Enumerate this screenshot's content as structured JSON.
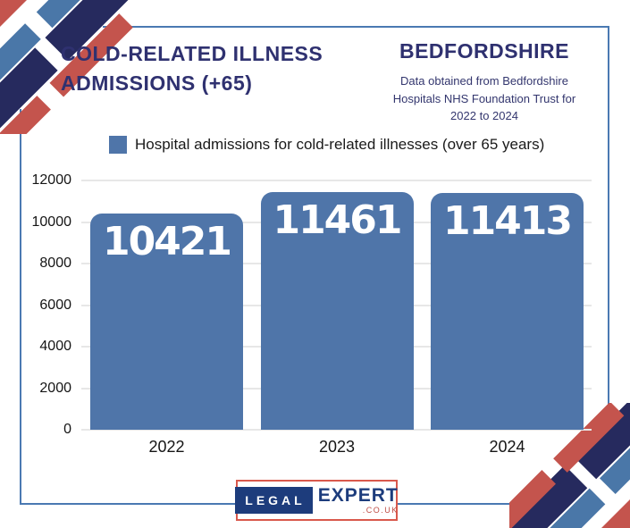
{
  "header": {
    "title_line1": "COLD-RELATED ILLNESS",
    "title_line2": "ADMISSIONS (+65)",
    "region_title": "BEDFORDSHIRE",
    "source_note": "Data obtained from Bedfordshire Hospitals NHS Foundation Trust for 2022 to 2024"
  },
  "legend": {
    "label": "Hospital admissions for cold-related illnesses (over 65 years)"
  },
  "chart_data": {
    "type": "bar",
    "title": "COLD-RELATED ILLNESS ADMISSIONS (+65) — BEDFORDSHIRE",
    "categories": [
      "2022",
      "2023",
      "2024"
    ],
    "values": [
      10421,
      11461,
      11413
    ],
    "series_label": "Hospital admissions for cold-related illnesses (over 65 years)",
    "xlabel": "",
    "ylabel": "",
    "ylim": [
      0,
      12000
    ],
    "yticks": [
      0,
      2000,
      4000,
      6000,
      8000,
      10000,
      12000
    ],
    "grid": true,
    "legend_position": "top",
    "bar_color": "#4f75a9",
    "value_label_color": "#ffffff"
  },
  "logo": {
    "part1": "LEGAL",
    "part2": "EXPERT",
    "part3": ".CO.UK"
  },
  "colors": {
    "accent_navy": "#2f3170",
    "stripe_navy": "#262a5e",
    "stripe_blue": "#4a77a8",
    "stripe_red": "#c4544d",
    "frame_blue": "#4a79b2",
    "gridline": "#e7e7e7",
    "logo_navy": "#1d3c7c",
    "logo_red": "#d9594c"
  }
}
